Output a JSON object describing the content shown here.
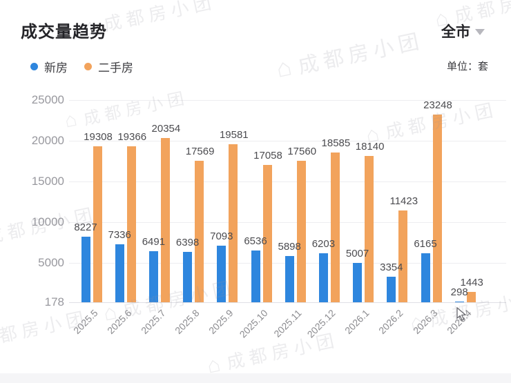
{
  "header": {
    "title": "成交量趋势",
    "region_selector": "全市",
    "unit_label": "单位：套"
  },
  "legend": [
    {
      "label": "新房",
      "color": "#2E86DE"
    },
    {
      "label": "二手房",
      "color": "#F2A35C"
    }
  ],
  "watermark_text": "成都房小团",
  "chart_data": {
    "type": "bar",
    "title": "成交量趋势",
    "unit": "套",
    "categories": [
      "2025.5",
      "2025.6",
      "2025.7",
      "2025.8",
      "2025.9",
      "2025.10",
      "2025.11",
      "2025.12",
      "2026.1",
      "2026.2",
      "2026.3",
      "2026.4"
    ],
    "series": [
      {
        "name": "新房",
        "color": "#2E86DE",
        "values": [
          8227,
          7336,
          6491,
          6398,
          7093,
          6536,
          5898,
          6203,
          5007,
          3354,
          6165,
          298
        ]
      },
      {
        "name": "二手房",
        "color": "#F2A35C",
        "values": [
          19308,
          19366,
          20354,
          17569,
          19581,
          17058,
          17560,
          18585,
          18140,
          11423,
          23248,
          1443
        ]
      }
    ],
    "yticks": [
      178,
      5000,
      10000,
      15000,
      20000,
      25000
    ],
    "ylim": [
      178,
      25000
    ],
    "grid": true,
    "value_labels": true,
    "legend_position": "top-left"
  }
}
